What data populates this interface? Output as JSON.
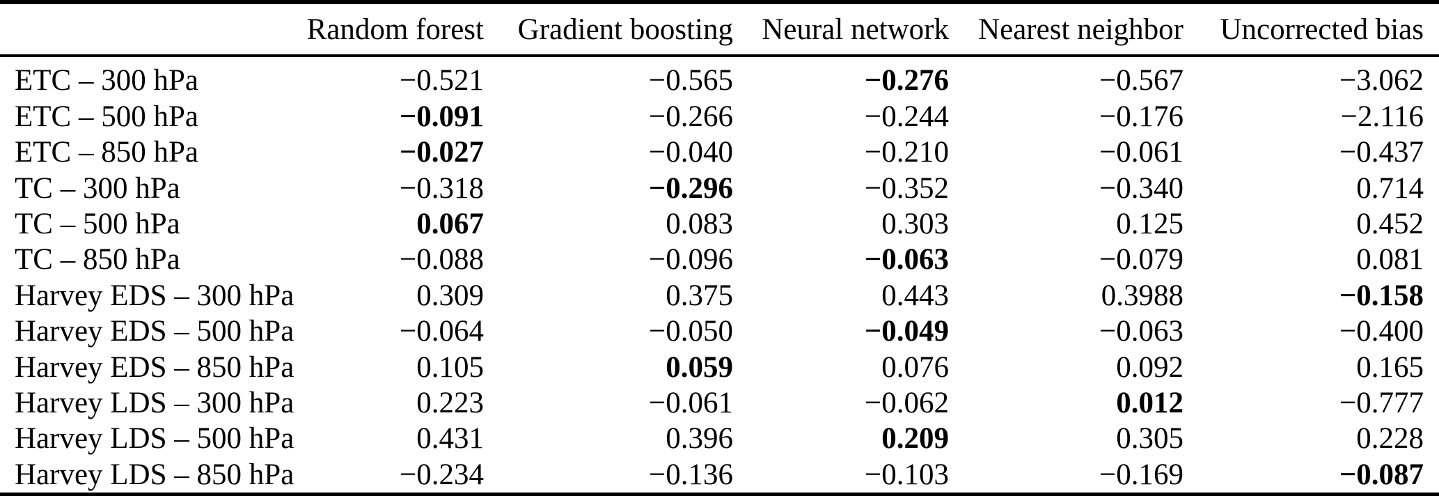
{
  "table": {
    "corner_label": "",
    "column_headers": [
      "Random forest",
      "Gradient boosting",
      "Neural network",
      "Nearest neighbor",
      "Uncorrected bias"
    ],
    "rows": [
      {
        "label": "ETC – 300 hPa",
        "values": [
          "−0.521",
          "−0.565",
          "−0.276",
          "−0.567",
          "−3.062"
        ],
        "bold_columns": [
          2
        ]
      },
      {
        "label": "ETC – 500 hPa",
        "values": [
          "−0.091",
          "−0.266",
          "−0.244",
          "−0.176",
          "−2.116"
        ],
        "bold_columns": [
          0
        ]
      },
      {
        "label": "ETC – 850 hPa",
        "values": [
          "−0.027",
          "−0.040",
          "−0.210",
          "−0.061",
          "−0.437"
        ],
        "bold_columns": [
          0
        ]
      },
      {
        "label": "TC – 300 hPa",
        "values": [
          "−0.318",
          "−0.296",
          "−0.352",
          "−0.340",
          "0.714"
        ],
        "bold_columns": [
          1
        ]
      },
      {
        "label": "TC – 500 hPa",
        "values": [
          "0.067",
          "0.083",
          "0.303",
          "0.125",
          "0.452"
        ],
        "bold_columns": [
          0
        ]
      },
      {
        "label": "TC – 850 hPa",
        "values": [
          "−0.088",
          "−0.096",
          "−0.063",
          "−0.079",
          "0.081"
        ],
        "bold_columns": [
          2
        ]
      },
      {
        "label": "Harvey EDS – 300 hPa",
        "values": [
          "0.309",
          "0.375",
          "0.443",
          "0.3988",
          "−0.158"
        ],
        "bold_columns": [
          4
        ]
      },
      {
        "label": "Harvey EDS – 500 hPa",
        "values": [
          "−0.064",
          "−0.050",
          "−0.049",
          "−0.063",
          "−0.400"
        ],
        "bold_columns": [
          2
        ]
      },
      {
        "label": "Harvey EDS – 850 hPa",
        "values": [
          "0.105",
          "0.059",
          "0.076",
          "0.092",
          "0.165"
        ],
        "bold_columns": [
          1
        ]
      },
      {
        "label": "Harvey LDS – 300 hPa",
        "values": [
          "0.223",
          "−0.061",
          "−0.062",
          "0.012",
          "−0.777"
        ],
        "bold_columns": [
          3
        ]
      },
      {
        "label": "Harvey LDS – 500 hPa",
        "values": [
          "0.431",
          "0.396",
          "0.209",
          "0.305",
          "0.228"
        ],
        "bold_columns": [
          2
        ]
      },
      {
        "label": "Harvey LDS – 850 hPa",
        "values": [
          "−0.234",
          "−0.136",
          "−0.103",
          "−0.169",
          "−0.087"
        ],
        "bold_columns": [
          4
        ]
      }
    ],
    "text_color": "#000000",
    "background_color": "#ffffff"
  }
}
